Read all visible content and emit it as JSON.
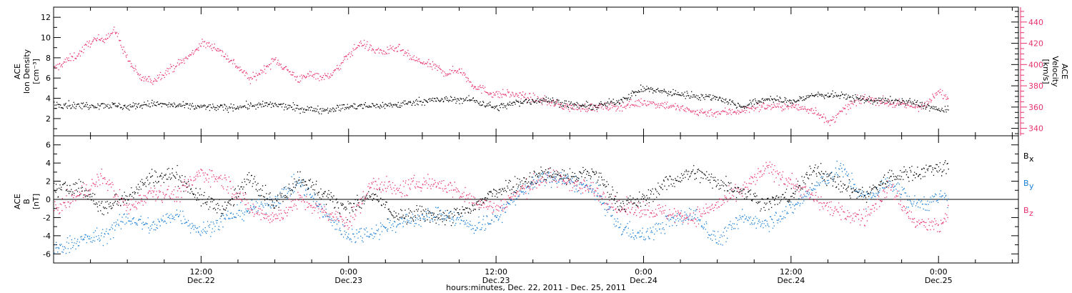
{
  "colors": {
    "black": "#000000",
    "pink": "#e8336d",
    "blue": "#1a7fd6",
    "frame": "#000000"
  },
  "xaxis": {
    "label": "hours:minutes, Dec. 22, 2011 - Dec. 25, 2011",
    "ticks": [
      {
        "t": 12,
        "time": "12:00",
        "date": "Dec.22"
      },
      {
        "t": 24,
        "time": "0:00",
        "date": "Dec.23"
      },
      {
        "t": 36,
        "time": "12:00",
        "date": "Dec.23"
      },
      {
        "t": 48,
        "time": "0:00",
        "date": "Dec.24"
      },
      {
        "t": 60,
        "time": "12:00",
        "date": "Dec.24"
      },
      {
        "t": 72,
        "time": "0:00",
        "date": "Dec.25"
      }
    ]
  },
  "chart_data": [
    {
      "type": "scatter",
      "panel": "top",
      "ylabel_left": [
        "ACE",
        "Ion Density",
        "[cm⁻³]"
      ],
      "ylabel_right": [
        "ACE",
        "Velocity",
        "[km/s]"
      ],
      "xlim": [
        0,
        78.5
      ],
      "ylim_left": [
        0.3,
        13
      ],
      "ylim_right": [
        333,
        454
      ],
      "yticks_left": [
        2,
        4,
        6,
        8,
        10,
        12
      ],
      "yticks_right": [
        340,
        360,
        380,
        400,
        420,
        440
      ],
      "series": [
        {
          "axis": "left",
          "color": "#000000",
          "t": [
            0,
            2,
            4,
            6,
            8,
            10,
            12,
            14,
            16,
            18,
            20,
            22,
            24,
            26,
            28,
            30,
            32,
            34,
            36,
            38,
            40,
            42,
            44,
            46,
            48,
            50,
            52,
            54,
            56,
            58,
            60,
            62,
            64,
            66,
            68,
            70,
            72,
            72.8
          ],
          "values": [
            3.5,
            3.3,
            3.4,
            3.2,
            3.5,
            3.3,
            3.2,
            3.1,
            3.3,
            3.4,
            3.0,
            2.9,
            3.2,
            3.3,
            3.4,
            3.8,
            3.9,
            3.9,
            3.1,
            3.7,
            3.9,
            3.4,
            3.2,
            3.8,
            5.0,
            4.6,
            4.3,
            4.1,
            3.2,
            4.0,
            3.7,
            4.4,
            4.3,
            3.9,
            3.8,
            3.6,
            2.9,
            2.8
          ]
        },
        {
          "axis": "right",
          "color": "#e8336d",
          "t": [
            0,
            1,
            2,
            3,
            4,
            5,
            6,
            7,
            8,
            9,
            10,
            11,
            12,
            13,
            14,
            15,
            16,
            17,
            18,
            19,
            20,
            21,
            22,
            23,
            24,
            25,
            26,
            27,
            28,
            29,
            30,
            31,
            32,
            33,
            34,
            35,
            36,
            37,
            38,
            40,
            42,
            44,
            46,
            48,
            50,
            52,
            54,
            56,
            57,
            58,
            60,
            62,
            63,
            64,
            65,
            66,
            68,
            70,
            71,
            72,
            72.8
          ],
          "values": [
            396,
            404,
            410,
            422,
            425,
            432,
            405,
            388,
            385,
            393,
            400,
            408,
            420,
            418,
            408,
            398,
            386,
            395,
            405,
            395,
            386,
            392,
            388,
            395,
            410,
            421,
            414,
            412,
            416,
            407,
            402,
            398,
            392,
            396,
            382,
            376,
            372,
            373,
            371,
            366,
            360,
            360,
            361,
            365,
            362,
            356,
            355,
            357,
            360,
            361,
            361,
            357,
            345,
            355,
            364,
            369,
            364,
            361,
            362,
            375,
            368
          ]
        }
      ]
    },
    {
      "type": "scatter",
      "panel": "bottom",
      "ylabel_left": [
        "ACE",
        "B",
        "[nT]"
      ],
      "xlim": [
        0,
        78.5
      ],
      "ylim": [
        -7,
        7
      ],
      "yticks": [
        -6,
        -4,
        -2,
        0,
        2,
        4,
        6
      ],
      "zero_line": true,
      "series": [
        {
          "name": "B",
          "subscript": "x",
          "color": "#000000",
          "t": [
            0,
            2,
            4,
            6,
            8,
            10,
            12,
            14,
            16,
            18,
            20,
            22,
            24,
            26,
            28,
            30,
            32,
            34,
            36,
            38,
            40,
            42,
            44,
            46,
            48,
            50,
            52,
            54,
            56,
            58,
            60,
            62,
            64,
            66,
            68,
            70,
            72,
            72.8
          ],
          "values": [
            1.0,
            1.5,
            -1.0,
            0.5,
            2.5,
            2.8,
            0.0,
            -1.0,
            2.5,
            -0.5,
            2.5,
            0.5,
            -1.0,
            0.5,
            -2.0,
            -1.5,
            -2.0,
            -1.0,
            1.0,
            2.0,
            3.0,
            2.5,
            3.0,
            -0.5,
            0.0,
            2.0,
            3.0,
            2.0,
            1.0,
            -0.5,
            0.5,
            3.5,
            1.5,
            0.5,
            2.5,
            3.0,
            3.5,
            3.6
          ]
        },
        {
          "name": "B",
          "subscript": "y",
          "color": "#1a7fd6",
          "t": [
            0,
            2,
            4,
            6,
            8,
            10,
            12,
            14,
            16,
            18,
            20,
            22,
            24,
            26,
            28,
            30,
            32,
            34,
            36,
            38,
            40,
            42,
            44,
            46,
            48,
            50,
            52,
            54,
            56,
            58,
            60,
            62,
            64,
            66,
            68,
            70,
            72,
            72.8
          ],
          "values": [
            -5.5,
            -4.5,
            -4.0,
            -2.0,
            -3.0,
            -1.5,
            -3.5,
            -2.0,
            -1.0,
            0.0,
            2.0,
            -1.5,
            -4.0,
            -3.5,
            -2.5,
            -2.0,
            -1.5,
            -3.0,
            -2.0,
            1.0,
            2.5,
            2.0,
            1.0,
            -3.0,
            -4.0,
            -2.5,
            -1.5,
            -4.5,
            -2.0,
            -2.5,
            -1.0,
            1.5,
            3.5,
            0.0,
            2.0,
            -0.5,
            0.0,
            0.3
          ]
        },
        {
          "name": "B",
          "subscript": "z",
          "color": "#e8336d",
          "t": [
            0,
            2,
            4,
            6,
            8,
            10,
            12,
            14,
            16,
            18,
            20,
            22,
            24,
            26,
            28,
            30,
            32,
            34,
            36,
            38,
            40,
            42,
            44,
            46,
            48,
            50,
            52,
            54,
            56,
            58,
            60,
            62,
            64,
            66,
            68,
            70,
            72,
            72.8
          ],
          "values": [
            -1.0,
            0.5,
            2.5,
            -1.0,
            1.0,
            0.5,
            3.0,
            2.0,
            -1.0,
            -2.0,
            0.0,
            -1.5,
            -2.5,
            2.0,
            1.0,
            2.0,
            1.5,
            0.0,
            -1.0,
            1.0,
            2.5,
            2.0,
            1.0,
            -1.0,
            -1.0,
            -1.5,
            -2.0,
            -0.5,
            1.0,
            3.5,
            2.0,
            0.0,
            -1.5,
            -2.0,
            1.5,
            -2.5,
            -3.0,
            -1.5
          ]
        }
      ]
    }
  ]
}
